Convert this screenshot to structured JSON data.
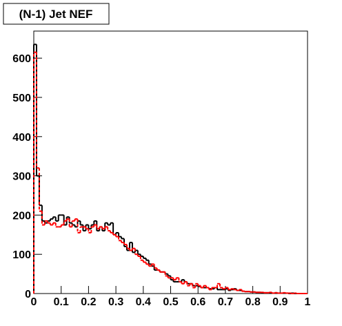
{
  "chart_data": {
    "type": "histogram",
    "title": "(N-1) Jet NEF",
    "bins": [
      0,
      0.01,
      0.02,
      0.03,
      0.04,
      0.05,
      0.06,
      0.07,
      0.08,
      0.09,
      0.1,
      0.11,
      0.12,
      0.13,
      0.14,
      0.15,
      0.16,
      0.17,
      0.18,
      0.19,
      0.2,
      0.21,
      0.22,
      0.23,
      0.24,
      0.25,
      0.26,
      0.27,
      0.28,
      0.29,
      0.3,
      0.31,
      0.32,
      0.33,
      0.34,
      0.35,
      0.36,
      0.37,
      0.38,
      0.39,
      0.4,
      0.41,
      0.42,
      0.43,
      0.44,
      0.45,
      0.46,
      0.47,
      0.48,
      0.49,
      0.5,
      0.51,
      0.52,
      0.53,
      0.54,
      0.55,
      0.56,
      0.57,
      0.58,
      0.59,
      0.6,
      0.61,
      0.62,
      0.63,
      0.64,
      0.65,
      0.66,
      0.67,
      0.68,
      0.69,
      0.7,
      0.71,
      0.72,
      0.73,
      0.74,
      0.75,
      0.76,
      0.77,
      0.78,
      0.79,
      0.8,
      0.81,
      0.82,
      0.83,
      0.84,
      0.85,
      0.86,
      0.87,
      0.88,
      0.89,
      0.9,
      0.91,
      0.92,
      0.93,
      0.94,
      0.95,
      0.96,
      0.97,
      0.98,
      0.99,
      1
    ],
    "series": [
      {
        "color": "#000000",
        "dashed": false,
        "values": [
          635,
          300,
          225,
          185,
          180,
          185,
          190,
          195,
          185,
          200,
          200,
          175,
          195,
          180,
          175,
          170,
          185,
          175,
          160,
          175,
          165,
          175,
          185,
          160,
          170,
          160,
          180,
          175,
          180,
          150,
          155,
          145,
          140,
          120,
          110,
          130,
          105,
          110,
          100,
          95,
          90,
          85,
          75,
          70,
          60,
          60,
          55,
          55,
          50,
          45,
          35,
          30,
          30,
          30,
          35,
          30,
          25,
          25,
          20,
          20,
          18,
          15,
          15,
          15,
          12,
          12,
          15,
          10,
          10,
          10,
          12,
          8,
          10,
          12,
          8,
          8,
          6,
          5,
          5,
          4,
          4,
          3,
          3,
          2,
          2,
          2,
          2,
          1,
          2,
          1,
          1,
          1,
          1,
          0,
          1,
          0,
          0,
          0,
          0,
          0
        ]
      },
      {
        "color": "#ff0000",
        "dashed": true,
        "values": [
          615,
          320,
          210,
          175,
          185,
          180,
          175,
          180,
          170,
          170,
          175,
          185,
          190,
          170,
          185,
          190,
          155,
          170,
          170,
          165,
          155,
          170,
          175,
          165,
          170,
          165,
          170,
          160,
          155,
          150,
          145,
          135,
          130,
          125,
          115,
          110,
          115,
          100,
          95,
          85,
          80,
          75,
          70,
          75,
          65,
          60,
          55,
          55,
          45,
          40,
          40,
          35,
          40,
          30,
          25,
          30,
          20,
          25,
          15,
          25,
          20,
          15,
          20,
          15,
          10,
          15,
          15,
          25,
          15,
          12,
          15,
          10,
          12,
          10,
          8,
          10,
          6,
          5,
          5,
          4,
          4,
          3,
          3,
          3,
          2,
          2,
          3,
          1,
          2,
          1,
          1,
          2,
          1,
          1,
          0,
          1,
          0,
          0,
          0,
          0
        ]
      }
    ],
    "xlim": [
      0,
      1
    ],
    "xticks": [
      0,
      0.1,
      0.2,
      0.3,
      0.4,
      0.5,
      0.6,
      0.7,
      0.8,
      0.9,
      1
    ],
    "ylim": [
      0,
      669
    ],
    "yticks": [
      0,
      100,
      200,
      300,
      400,
      500,
      600
    ]
  }
}
